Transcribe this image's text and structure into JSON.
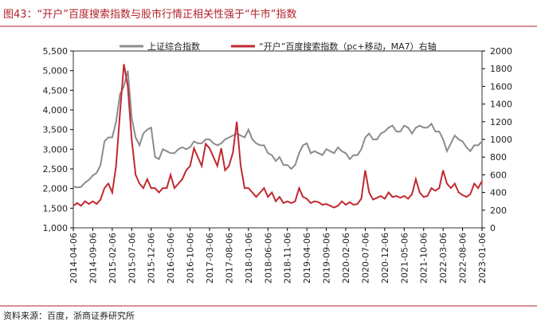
{
  "chart_data": {
    "type": "line",
    "title": "图43：“开户”百度搜索指数与股市行情正相关性强于“牛市”指数",
    "source": "资料来源：百度，浙商证券研究所",
    "categories": [
      "2014-04-06",
      null,
      null,
      null,
      null,
      "2014-09-06",
      null,
      null,
      null,
      null,
      "2015-02-06",
      null,
      null,
      null,
      null,
      "2015-07-06",
      null,
      null,
      null,
      null,
      "2015-12-06",
      null,
      null,
      null,
      null,
      "2016-05-06",
      null,
      null,
      null,
      null,
      "2016-10-06",
      null,
      null,
      null,
      null,
      "2017-03-06",
      null,
      null,
      null,
      null,
      "2017-08-06",
      null,
      null,
      null,
      null,
      "2018-01-06",
      null,
      null,
      null,
      null,
      "2018-06-06",
      null,
      null,
      null,
      null,
      "2018-11-06",
      null,
      null,
      null,
      null,
      "2019-04-06",
      null,
      null,
      null,
      null,
      "2019-09-06",
      null,
      null,
      null,
      null,
      "2020-02-06",
      null,
      null,
      null,
      null,
      "2020-07-06",
      null,
      null,
      null,
      null,
      "2020-12-06",
      null,
      null,
      null,
      null,
      "2021-05-06",
      null,
      null,
      null,
      null,
      "2021-10-06",
      null,
      null,
      null,
      null,
      "2022-03-06",
      null,
      null,
      null,
      null,
      "2022-08-06",
      null,
      null,
      null,
      null,
      "2023-01-06"
    ],
    "series": [
      {
        "name": "上证综合指数",
        "color": "#8c8c8c",
        "values": [
          2050,
          2030,
          2040,
          2150,
          2220,
          2330,
          2400,
          2600,
          3200,
          3300,
          3300,
          3700,
          4400,
          4600,
          5000,
          3800,
          3300,
          3100,
          3400,
          3500,
          3550,
          2800,
          2750,
          3000,
          2950,
          2900,
          2900,
          3000,
          3050,
          3000,
          3050,
          3200,
          3150,
          3150,
          3250,
          3250,
          3150,
          3100,
          3150,
          3250,
          3300,
          3350,
          3400,
          3350,
          3300,
          3500,
          3250,
          3150,
          3100,
          3100,
          2900,
          2850,
          2700,
          2800,
          2600,
          2600,
          2500,
          2600,
          2900,
          3100,
          3150,
          2900,
          2950,
          2900,
          2850,
          3000,
          2950,
          2900,
          3050,
          2950,
          2900,
          2750,
          2850,
          2850,
          3000,
          3300,
          3400,
          3250,
          3250,
          3400,
          3450,
          3550,
          3600,
          3450,
          3450,
          3600,
          3550,
          3400,
          3550,
          3600,
          3550,
          3550,
          3650,
          3450,
          3450,
          3250,
          2950,
          3150,
          3350,
          3250,
          3200,
          3050,
          2950,
          3100,
          3100,
          3200
        ]
      },
      {
        "name": "“开户”百度搜索指数（pc+移动，MA7）右轴",
        "color": "#c0292f",
        "axis": "y2",
        "values": [
          250,
          280,
          250,
          300,
          270,
          300,
          270,
          320,
          450,
          500,
          400,
          700,
          1300,
          1850,
          1600,
          1000,
          600,
          500,
          450,
          550,
          450,
          450,
          400,
          450,
          450,
          600,
          450,
          500,
          550,
          650,
          700,
          900,
          800,
          700,
          950,
          900,
          800,
          700,
          900,
          650,
          700,
          850,
          1200,
          700,
          450,
          450,
          400,
          350,
          400,
          450,
          350,
          400,
          300,
          350,
          280,
          300,
          280,
          300,
          450,
          350,
          330,
          280,
          300,
          290,
          260,
          270,
          250,
          230,
          250,
          300,
          260,
          290,
          260,
          270,
          330,
          650,
          400,
          320,
          340,
          360,
          330,
          400,
          350,
          360,
          340,
          360,
          330,
          380,
          550,
          400,
          350,
          360,
          450,
          420,
          450,
          650,
          500,
          450,
          500,
          400,
          370,
          350,
          380,
          500,
          450,
          530
        ]
      }
    ],
    "ylim": [
      1000,
      5500
    ],
    "yticks": [
      {
        "value": 1000,
        "label": "1,000"
      },
      {
        "value": 1500,
        "label": "1,500"
      },
      {
        "value": 2000,
        "label": "2,000"
      },
      {
        "value": 2500,
        "label": "2,500"
      },
      {
        "value": 3000,
        "label": "3,000"
      },
      {
        "value": 3500,
        "label": "3,500"
      },
      {
        "value": 4000,
        "label": "4,000"
      },
      {
        "value": 4500,
        "label": "4,500"
      },
      {
        "value": 5000,
        "label": "5,000"
      },
      {
        "value": 5500,
        "label": "5,500"
      }
    ],
    "y2lim": [
      0,
      2000
    ],
    "y2ticks": [
      0,
      200,
      400,
      600,
      800,
      1000,
      1200,
      1400,
      1600,
      1800,
      2000
    ]
  }
}
